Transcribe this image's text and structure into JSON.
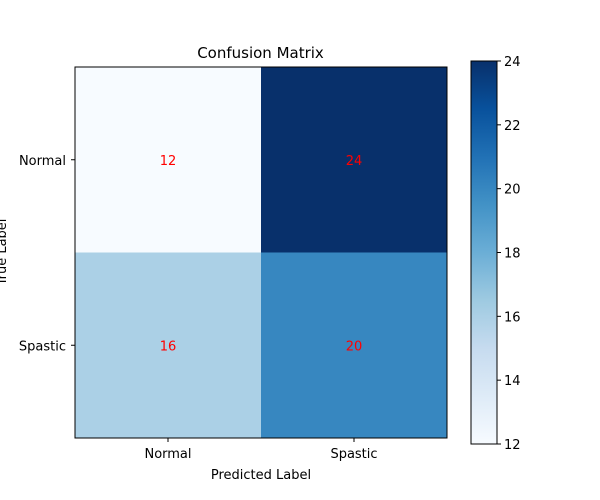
{
  "chart_data": {
    "type": "heatmap",
    "title": "Confusion Matrix",
    "xlabel": "Predicted Label",
    "ylabel": "True Label",
    "x_categories": [
      "Normal",
      "Spastic"
    ],
    "y_categories": [
      "Normal",
      "Spastic"
    ],
    "values": [
      [
        12,
        24
      ],
      [
        16,
        20
      ]
    ],
    "colormap": "Blues",
    "value_text_color": "#ff0000",
    "colorbar": {
      "range": [
        12,
        24
      ],
      "ticks": [
        "12",
        "14",
        "16",
        "18",
        "20",
        "22",
        "24"
      ],
      "tick_values": [
        12,
        14,
        16,
        18,
        20,
        22,
        24
      ]
    },
    "colors": {
      "low": "#f7fbff",
      "high": "#08306b"
    }
  }
}
